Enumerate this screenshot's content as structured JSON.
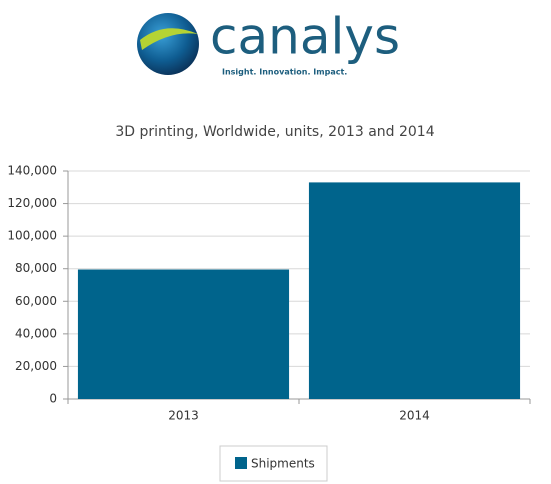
{
  "logo": {
    "name": "canalys",
    "tagline": "Insight. Innovation. Impact."
  },
  "chart_data": {
    "type": "bar",
    "title": "3D printing, Worldwide, units, 2013 and 2014",
    "categories": [
      "2013",
      "2014"
    ],
    "series": [
      {
        "name": "Shipments",
        "color": "#00648c",
        "values": [
          79500,
          133000
        ]
      }
    ],
    "ylim": [
      0,
      140000
    ],
    "yticks": [
      0,
      {
        "value": 20000,
        "label": "20,000"
      },
      {
        "value": 40000,
        "label": "40,000"
      },
      {
        "value": 60000,
        "label": "60,000"
      },
      {
        "value": 80000,
        "label": "80,000"
      },
      {
        "value": 100000,
        "label": "100,000"
      },
      {
        "value": 120000,
        "label": "120,000"
      },
      {
        "value": 140000,
        "label": "140,000"
      }
    ],
    "grid": true,
    "legend": "bottom"
  }
}
